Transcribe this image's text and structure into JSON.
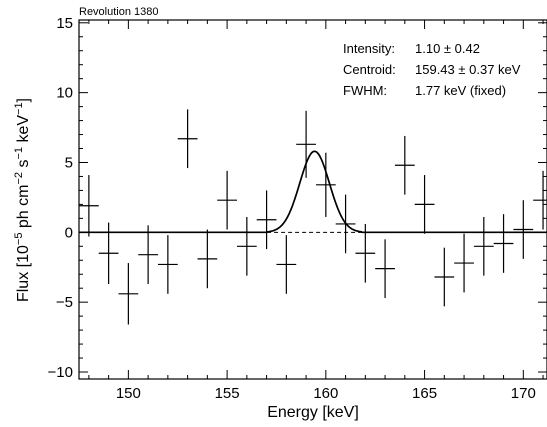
{
  "chart_data": {
    "type": "scatter",
    "title": "Revolution 1380",
    "xlabel": "Energy [keV]",
    "ylabel_parts": {
      "t1": "Flux [10",
      "e1": "−5",
      "t2": " ph cm",
      "e2": "−2",
      "t3": " s",
      "e3": "−1",
      "t4": " keV",
      "e4": "−1",
      "t5": "]"
    },
    "xlim": [
      147.5,
      171.2
    ],
    "ylim": [
      -10.5,
      15.2
    ],
    "xticks": [
      150,
      155,
      160,
      165,
      170
    ],
    "xtick_labels": [
      "150",
      "155",
      "160",
      "165",
      "170"
    ],
    "yticks": [
      -10,
      -5,
      0,
      5,
      10,
      15
    ],
    "ytick_labels": [
      "−10",
      "−5",
      "0",
      "5",
      "10",
      "15"
    ],
    "grid": false,
    "annotations": [
      {
        "label": "Intensity:",
        "value": "1.10 ± 0.42"
      },
      {
        "label": "Centroid:",
        "value": "159.43 ± 0.37 keV"
      },
      {
        "label": "FWHM:",
        "value": "1.77 keV (fixed)"
      }
    ],
    "points": [
      {
        "x": 148,
        "y": 1.9,
        "xerr": 0.5,
        "yerr": 2.2
      },
      {
        "x": 149,
        "y": -1.5,
        "xerr": 0.5,
        "yerr": 2.2
      },
      {
        "x": 150,
        "y": -4.4,
        "xerr": 0.5,
        "yerr": 2.2
      },
      {
        "x": 151,
        "y": -1.6,
        "xerr": 0.5,
        "yerr": 2.1
      },
      {
        "x": 152,
        "y": -2.3,
        "xerr": 0.5,
        "yerr": 2.1
      },
      {
        "x": 153,
        "y": 6.7,
        "xerr": 0.5,
        "yerr": 2.1
      },
      {
        "x": 154,
        "y": -1.9,
        "xerr": 0.5,
        "yerr": 2.1
      },
      {
        "x": 155,
        "y": 2.3,
        "xerr": 0.5,
        "yerr": 2.1
      },
      {
        "x": 156,
        "y": -1.0,
        "xerr": 0.5,
        "yerr": 2.1
      },
      {
        "x": 157,
        "y": 0.9,
        "xerr": 0.5,
        "yerr": 2.1
      },
      {
        "x": 158,
        "y": -2.3,
        "xerr": 0.5,
        "yerr": 2.1
      },
      {
        "x": 159,
        "y": 6.3,
        "xerr": 0.5,
        "yerr": 2.4
      },
      {
        "x": 160,
        "y": 3.4,
        "xerr": 0.5,
        "yerr": 2.3
      },
      {
        "x": 161,
        "y": 0.6,
        "xerr": 0.5,
        "yerr": 2.1
      },
      {
        "x": 162,
        "y": -1.5,
        "xerr": 0.5,
        "yerr": 2.1
      },
      {
        "x": 163,
        "y": -2.6,
        "xerr": 0.5,
        "yerr": 2.1
      },
      {
        "x": 164,
        "y": 4.8,
        "xerr": 0.5,
        "yerr": 2.1
      },
      {
        "x": 165,
        "y": 2.0,
        "xerr": 0.5,
        "yerr": 2.1
      },
      {
        "x": 166,
        "y": -3.2,
        "xerr": 0.5,
        "yerr": 2.1
      },
      {
        "x": 167,
        "y": -2.2,
        "xerr": 0.5,
        "yerr": 2.1
      },
      {
        "x": 168,
        "y": -1.0,
        "xerr": 0.5,
        "yerr": 2.1
      },
      {
        "x": 169,
        "y": -0.8,
        "xerr": 0.5,
        "yerr": 2.1
      },
      {
        "x": 170,
        "y": 0.2,
        "xerr": 0.5,
        "yerr": 2.1
      },
      {
        "x": 171,
        "y": 2.3,
        "xerr": 0.5,
        "yerr": 2.1
      }
    ],
    "model": {
      "shape": "gaussian",
      "centroid": 159.43,
      "fwhm": 1.77,
      "peak": 5.8
    }
  }
}
